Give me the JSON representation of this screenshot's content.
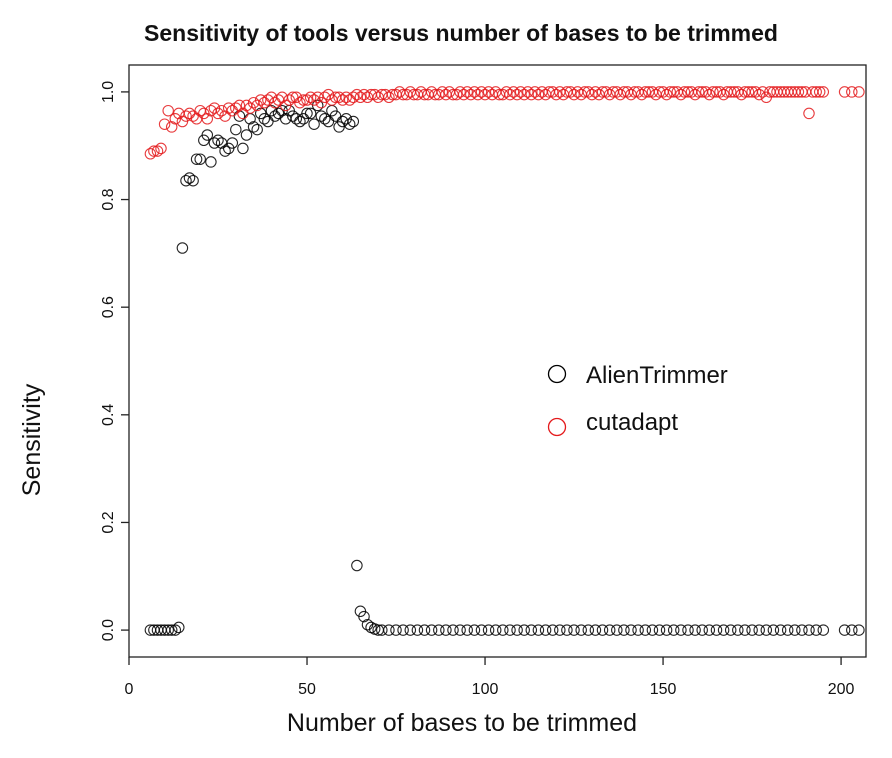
{
  "chart_data": {
    "type": "scatter",
    "title": "Sensitivity of tools versus number of bases to be trimmed",
    "xlabel": "Number of bases to be trimmed",
    "ylabel": "Sensitivity",
    "xlim": [
      0,
      207
    ],
    "ylim": [
      -0.05,
      1.05
    ],
    "xticks": [
      0,
      50,
      100,
      150,
      200
    ],
    "yticks": [
      0.0,
      0.2,
      0.4,
      0.6,
      0.8,
      1.0
    ],
    "xtick_labels": [
      "0",
      "50",
      "100",
      "150",
      "200"
    ],
    "ytick_labels": [
      "0.0",
      "0.2",
      "0.4",
      "0.6",
      "0.8",
      "1.0"
    ],
    "grid": false,
    "legend": {
      "placement": "right-middle"
    },
    "series": [
      {
        "name": "AlienTrimmer",
        "color": "#000000",
        "marker": "open-circle",
        "points": [
          [
            6,
            0.0
          ],
          [
            7,
            0.0
          ],
          [
            8,
            0.0
          ],
          [
            9,
            0.0
          ],
          [
            10,
            0.0
          ],
          [
            11,
            0.0
          ],
          [
            12,
            0.0
          ],
          [
            13,
            0.0
          ],
          [
            14,
            0.005
          ],
          [
            15,
            0.71
          ],
          [
            16,
            0.835
          ],
          [
            17,
            0.84
          ],
          [
            18,
            0.835
          ],
          [
            19,
            0.875
          ],
          [
            20,
            0.875
          ],
          [
            21,
            0.91
          ],
          [
            22,
            0.92
          ],
          [
            23,
            0.87
          ],
          [
            24,
            0.905
          ],
          [
            25,
            0.91
          ],
          [
            26,
            0.905
          ],
          [
            27,
            0.89
          ],
          [
            28,
            0.895
          ],
          [
            29,
            0.905
          ],
          [
            30,
            0.93
          ],
          [
            31,
            0.955
          ],
          [
            32,
            0.895
          ],
          [
            33,
            0.92
          ],
          [
            34,
            0.95
          ],
          [
            35,
            0.935
          ],
          [
            36,
            0.93
          ],
          [
            37,
            0.96
          ],
          [
            38,
            0.95
          ],
          [
            39,
            0.945
          ],
          [
            40,
            0.965
          ],
          [
            41,
            0.955
          ],
          [
            42,
            0.96
          ],
          [
            43,
            0.965
          ],
          [
            44,
            0.95
          ],
          [
            45,
            0.965
          ],
          [
            46,
            0.955
          ],
          [
            47,
            0.95
          ],
          [
            48,
            0.945
          ],
          [
            49,
            0.95
          ],
          [
            50,
            0.96
          ],
          [
            51,
            0.96
          ],
          [
            52,
            0.94
          ],
          [
            53,
            0.975
          ],
          [
            54,
            0.955
          ],
          [
            55,
            0.95
          ],
          [
            56,
            0.945
          ],
          [
            57,
            0.965
          ],
          [
            58,
            0.955
          ],
          [
            59,
            0.935
          ],
          [
            60,
            0.945
          ],
          [
            61,
            0.95
          ],
          [
            62,
            0.94
          ],
          [
            63,
            0.945
          ],
          [
            64,
            0.12
          ],
          [
            65,
            0.035
          ],
          [
            66,
            0.025
          ],
          [
            67,
            0.01
          ],
          [
            68,
            0.005
          ],
          [
            69,
            0.002
          ],
          [
            70,
            0.0
          ],
          [
            71,
            0.0
          ],
          [
            73,
            0.0
          ],
          [
            75,
            0.0
          ],
          [
            77,
            0.0
          ],
          [
            79,
            0.0
          ],
          [
            81,
            0.0
          ],
          [
            83,
            0.0
          ],
          [
            85,
            0.0
          ],
          [
            87,
            0.0
          ],
          [
            89,
            0.0
          ],
          [
            91,
            0.0
          ],
          [
            93,
            0.0
          ],
          [
            95,
            0.0
          ],
          [
            97,
            0.0
          ],
          [
            99,
            0.0
          ],
          [
            101,
            0.0
          ],
          [
            103,
            0.0
          ],
          [
            105,
            0.0
          ],
          [
            107,
            0.0
          ],
          [
            109,
            0.0
          ],
          [
            111,
            0.0
          ],
          [
            113,
            0.0
          ],
          [
            115,
            0.0
          ],
          [
            117,
            0.0
          ],
          [
            119,
            0.0
          ],
          [
            121,
            0.0
          ],
          [
            123,
            0.0
          ],
          [
            125,
            0.0
          ],
          [
            127,
            0.0
          ],
          [
            129,
            0.0
          ],
          [
            131,
            0.0
          ],
          [
            133,
            0.0
          ],
          [
            135,
            0.0
          ],
          [
            137,
            0.0
          ],
          [
            139,
            0.0
          ],
          [
            141,
            0.0
          ],
          [
            143,
            0.0
          ],
          [
            145,
            0.0
          ],
          [
            147,
            0.0
          ],
          [
            149,
            0.0
          ],
          [
            151,
            0.0
          ],
          [
            153,
            0.0
          ],
          [
            155,
            0.0
          ],
          [
            157,
            0.0
          ],
          [
            159,
            0.0
          ],
          [
            161,
            0.0
          ],
          [
            163,
            0.0
          ],
          [
            165,
            0.0
          ],
          [
            167,
            0.0
          ],
          [
            169,
            0.0
          ],
          [
            171,
            0.0
          ],
          [
            173,
            0.0
          ],
          [
            175,
            0.0
          ],
          [
            177,
            0.0
          ],
          [
            179,
            0.0
          ],
          [
            181,
            0.0
          ],
          [
            183,
            0.0
          ],
          [
            185,
            0.0
          ],
          [
            187,
            0.0
          ],
          [
            189,
            0.0
          ],
          [
            191,
            0.0
          ],
          [
            193,
            0.0
          ],
          [
            195,
            0.0
          ],
          [
            201,
            0.0
          ],
          [
            203,
            0.0
          ],
          [
            205,
            0.0
          ]
        ]
      },
      {
        "name": "cutadapt",
        "color": "#e41a1c",
        "marker": "open-circle",
        "points": [
          [
            6,
            0.885
          ],
          [
            7,
            0.89
          ],
          [
            8,
            0.89
          ],
          [
            9,
            0.895
          ],
          [
            10,
            0.94
          ],
          [
            11,
            0.965
          ],
          [
            12,
            0.935
          ],
          [
            13,
            0.95
          ],
          [
            14,
            0.96
          ],
          [
            15,
            0.945
          ],
          [
            16,
            0.955
          ],
          [
            17,
            0.96
          ],
          [
            18,
            0.955
          ],
          [
            19,
            0.95
          ],
          [
            20,
            0.965
          ],
          [
            21,
            0.96
          ],
          [
            22,
            0.95
          ],
          [
            23,
            0.965
          ],
          [
            24,
            0.97
          ],
          [
            25,
            0.96
          ],
          [
            26,
            0.965
          ],
          [
            27,
            0.955
          ],
          [
            28,
            0.97
          ],
          [
            29,
            0.965
          ],
          [
            30,
            0.97
          ],
          [
            31,
            0.975
          ],
          [
            32,
            0.96
          ],
          [
            33,
            0.975
          ],
          [
            34,
            0.97
          ],
          [
            35,
            0.98
          ],
          [
            36,
            0.975
          ],
          [
            37,
            0.985
          ],
          [
            38,
            0.98
          ],
          [
            39,
            0.985
          ],
          [
            40,
            0.99
          ],
          [
            41,
            0.98
          ],
          [
            42,
            0.985
          ],
          [
            43,
            0.99
          ],
          [
            44,
            0.975
          ],
          [
            45,
            0.985
          ],
          [
            46,
            0.99
          ],
          [
            47,
            0.99
          ],
          [
            48,
            0.98
          ],
          [
            49,
            0.985
          ],
          [
            50,
            0.985
          ],
          [
            51,
            0.99
          ],
          [
            52,
            0.985
          ],
          [
            53,
            0.99
          ],
          [
            54,
            0.98
          ],
          [
            55,
            0.99
          ],
          [
            56,
            0.995
          ],
          [
            57,
            0.985
          ],
          [
            58,
            0.99
          ],
          [
            59,
            0.99
          ],
          [
            60,
            0.985
          ],
          [
            61,
            0.99
          ],
          [
            62,
            0.985
          ],
          [
            63,
            0.99
          ],
          [
            64,
            0.995
          ],
          [
            65,
            0.99
          ],
          [
            66,
            0.995
          ],
          [
            67,
            0.99
          ],
          [
            68,
            0.995
          ],
          [
            69,
            0.995
          ],
          [
            70,
            0.99
          ],
          [
            71,
            0.995
          ],
          [
            72,
            0.995
          ],
          [
            73,
            0.99
          ],
          [
            74,
            0.995
          ],
          [
            75,
            0.995
          ],
          [
            76,
            1.0
          ],
          [
            77,
            0.995
          ],
          [
            78,
            0.995
          ],
          [
            79,
            1.0
          ],
          [
            80,
            0.995
          ],
          [
            81,
            0.995
          ],
          [
            82,
            1.0
          ],
          [
            83,
            0.995
          ],
          [
            84,
            0.995
          ],
          [
            85,
            1.0
          ],
          [
            86,
            0.995
          ],
          [
            87,
            0.995
          ],
          [
            88,
            1.0
          ],
          [
            89,
            0.995
          ],
          [
            90,
            1.0
          ],
          [
            91,
            0.995
          ],
          [
            92,
            0.995
          ],
          [
            93,
            1.0
          ],
          [
            94,
            0.995
          ],
          [
            95,
            1.0
          ],
          [
            96,
            0.995
          ],
          [
            97,
            1.0
          ],
          [
            98,
            0.995
          ],
          [
            99,
            1.0
          ],
          [
            100,
            0.995
          ],
          [
            101,
            1.0
          ],
          [
            102,
            0.995
          ],
          [
            103,
            1.0
          ],
          [
            104,
            0.995
          ],
          [
            105,
            0.995
          ],
          [
            106,
            1.0
          ],
          [
            107,
            0.995
          ],
          [
            108,
            1.0
          ],
          [
            109,
            0.995
          ],
          [
            110,
            1.0
          ],
          [
            111,
            0.995
          ],
          [
            112,
            1.0
          ],
          [
            113,
            0.995
          ],
          [
            114,
            1.0
          ],
          [
            115,
            0.995
          ],
          [
            116,
            1.0
          ],
          [
            117,
            0.995
          ],
          [
            118,
            1.0
          ],
          [
            119,
            1.0
          ],
          [
            120,
            0.995
          ],
          [
            121,
            1.0
          ],
          [
            122,
            0.995
          ],
          [
            123,
            1.0
          ],
          [
            124,
            1.0
          ],
          [
            125,
            0.995
          ],
          [
            126,
            1.0
          ],
          [
            127,
            0.995
          ],
          [
            128,
            1.0
          ],
          [
            129,
            1.0
          ],
          [
            130,
            0.995
          ],
          [
            131,
            1.0
          ],
          [
            132,
            0.995
          ],
          [
            133,
            1.0
          ],
          [
            134,
            1.0
          ],
          [
            135,
            0.995
          ],
          [
            136,
            1.0
          ],
          [
            137,
            1.0
          ],
          [
            138,
            0.995
          ],
          [
            139,
            1.0
          ],
          [
            140,
            1.0
          ],
          [
            141,
            0.995
          ],
          [
            142,
            1.0
          ],
          [
            143,
            1.0
          ],
          [
            144,
            0.995
          ],
          [
            145,
            1.0
          ],
          [
            146,
            1.0
          ],
          [
            147,
            1.0
          ],
          [
            148,
            0.995
          ],
          [
            149,
            1.0
          ],
          [
            150,
            1.0
          ],
          [
            151,
            0.995
          ],
          [
            152,
            1.0
          ],
          [
            153,
            1.0
          ],
          [
            154,
            1.0
          ],
          [
            155,
            0.995
          ],
          [
            156,
            1.0
          ],
          [
            157,
            1.0
          ],
          [
            158,
            1.0
          ],
          [
            159,
            0.995
          ],
          [
            160,
            1.0
          ],
          [
            161,
            1.0
          ],
          [
            162,
            1.0
          ],
          [
            163,
            0.995
          ],
          [
            164,
            1.0
          ],
          [
            165,
            1.0
          ],
          [
            166,
            1.0
          ],
          [
            167,
            0.995
          ],
          [
            168,
            1.0
          ],
          [
            169,
            1.0
          ],
          [
            170,
            1.0
          ],
          [
            171,
            1.0
          ],
          [
            172,
            0.995
          ],
          [
            173,
            1.0
          ],
          [
            174,
            1.0
          ],
          [
            175,
            1.0
          ],
          [
            176,
            1.0
          ],
          [
            177,
            0.995
          ],
          [
            178,
            1.0
          ],
          [
            179,
            0.99
          ],
          [
            180,
            1.0
          ],
          [
            181,
            1.0
          ],
          [
            182,
            1.0
          ],
          [
            183,
            1.0
          ],
          [
            184,
            1.0
          ],
          [
            185,
            1.0
          ],
          [
            186,
            1.0
          ],
          [
            187,
            1.0
          ],
          [
            188,
            1.0
          ],
          [
            189,
            1.0
          ],
          [
            190,
            1.0
          ],
          [
            191,
            0.96
          ],
          [
            192,
            1.0
          ],
          [
            193,
            1.0
          ],
          [
            194,
            1.0
          ],
          [
            195,
            1.0
          ],
          [
            201,
            1.0
          ],
          [
            203,
            1.0
          ],
          [
            205,
            1.0
          ]
        ]
      }
    ]
  }
}
